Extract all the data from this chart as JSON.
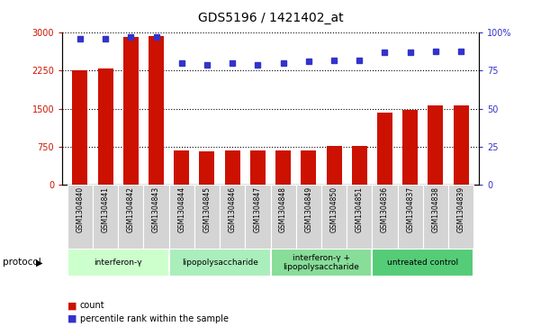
{
  "title": "GDS5196 / 1421402_at",
  "samples": [
    "GSM1304840",
    "GSM1304841",
    "GSM1304842",
    "GSM1304843",
    "GSM1304844",
    "GSM1304845",
    "GSM1304846",
    "GSM1304847",
    "GSM1304848",
    "GSM1304849",
    "GSM1304850",
    "GSM1304851",
    "GSM1304836",
    "GSM1304837",
    "GSM1304838",
    "GSM1304839"
  ],
  "counts": [
    2260,
    2290,
    2910,
    2930,
    680,
    660,
    680,
    670,
    680,
    680,
    760,
    760,
    1420,
    1470,
    1560,
    1560
  ],
  "percentiles": [
    96,
    96,
    97,
    97,
    80,
    79,
    80,
    79,
    80,
    81,
    82,
    82,
    87,
    87,
    88,
    88
  ],
  "protocols": [
    {
      "label": "interferon-γ",
      "start": 0,
      "end": 4,
      "color": "#ccffcc"
    },
    {
      "label": "lipopolysaccharide",
      "start": 4,
      "end": 8,
      "color": "#aaeebb"
    },
    {
      "label": "interferon-γ +\nlipopolysaccharide",
      "start": 8,
      "end": 12,
      "color": "#88dd99"
    },
    {
      "label": "untreated control",
      "start": 12,
      "end": 16,
      "color": "#55cc77"
    }
  ],
  "bar_color": "#cc1100",
  "dot_color": "#3333cc",
  "left_ylim": [
    0,
    3000
  ],
  "right_ylim": [
    0,
    100
  ],
  "left_yticks": [
    0,
    750,
    1500,
    2250,
    3000
  ],
  "right_yticks": [
    0,
    25,
    50,
    75,
    100
  ],
  "left_ytick_labels": [
    "0",
    "750",
    "1500",
    "2250",
    "3000"
  ],
  "right_ytick_labels": [
    "0",
    "25",
    "50",
    "75",
    "100%"
  ],
  "left_color": "#cc1100",
  "right_color": "#3333cc",
  "legend_items": [
    {
      "label": "count",
      "color": "#cc1100"
    },
    {
      "label": "percentile rank within the sample",
      "color": "#3333cc"
    }
  ],
  "protocol_label": "protocol",
  "background_color": "#ffffff"
}
